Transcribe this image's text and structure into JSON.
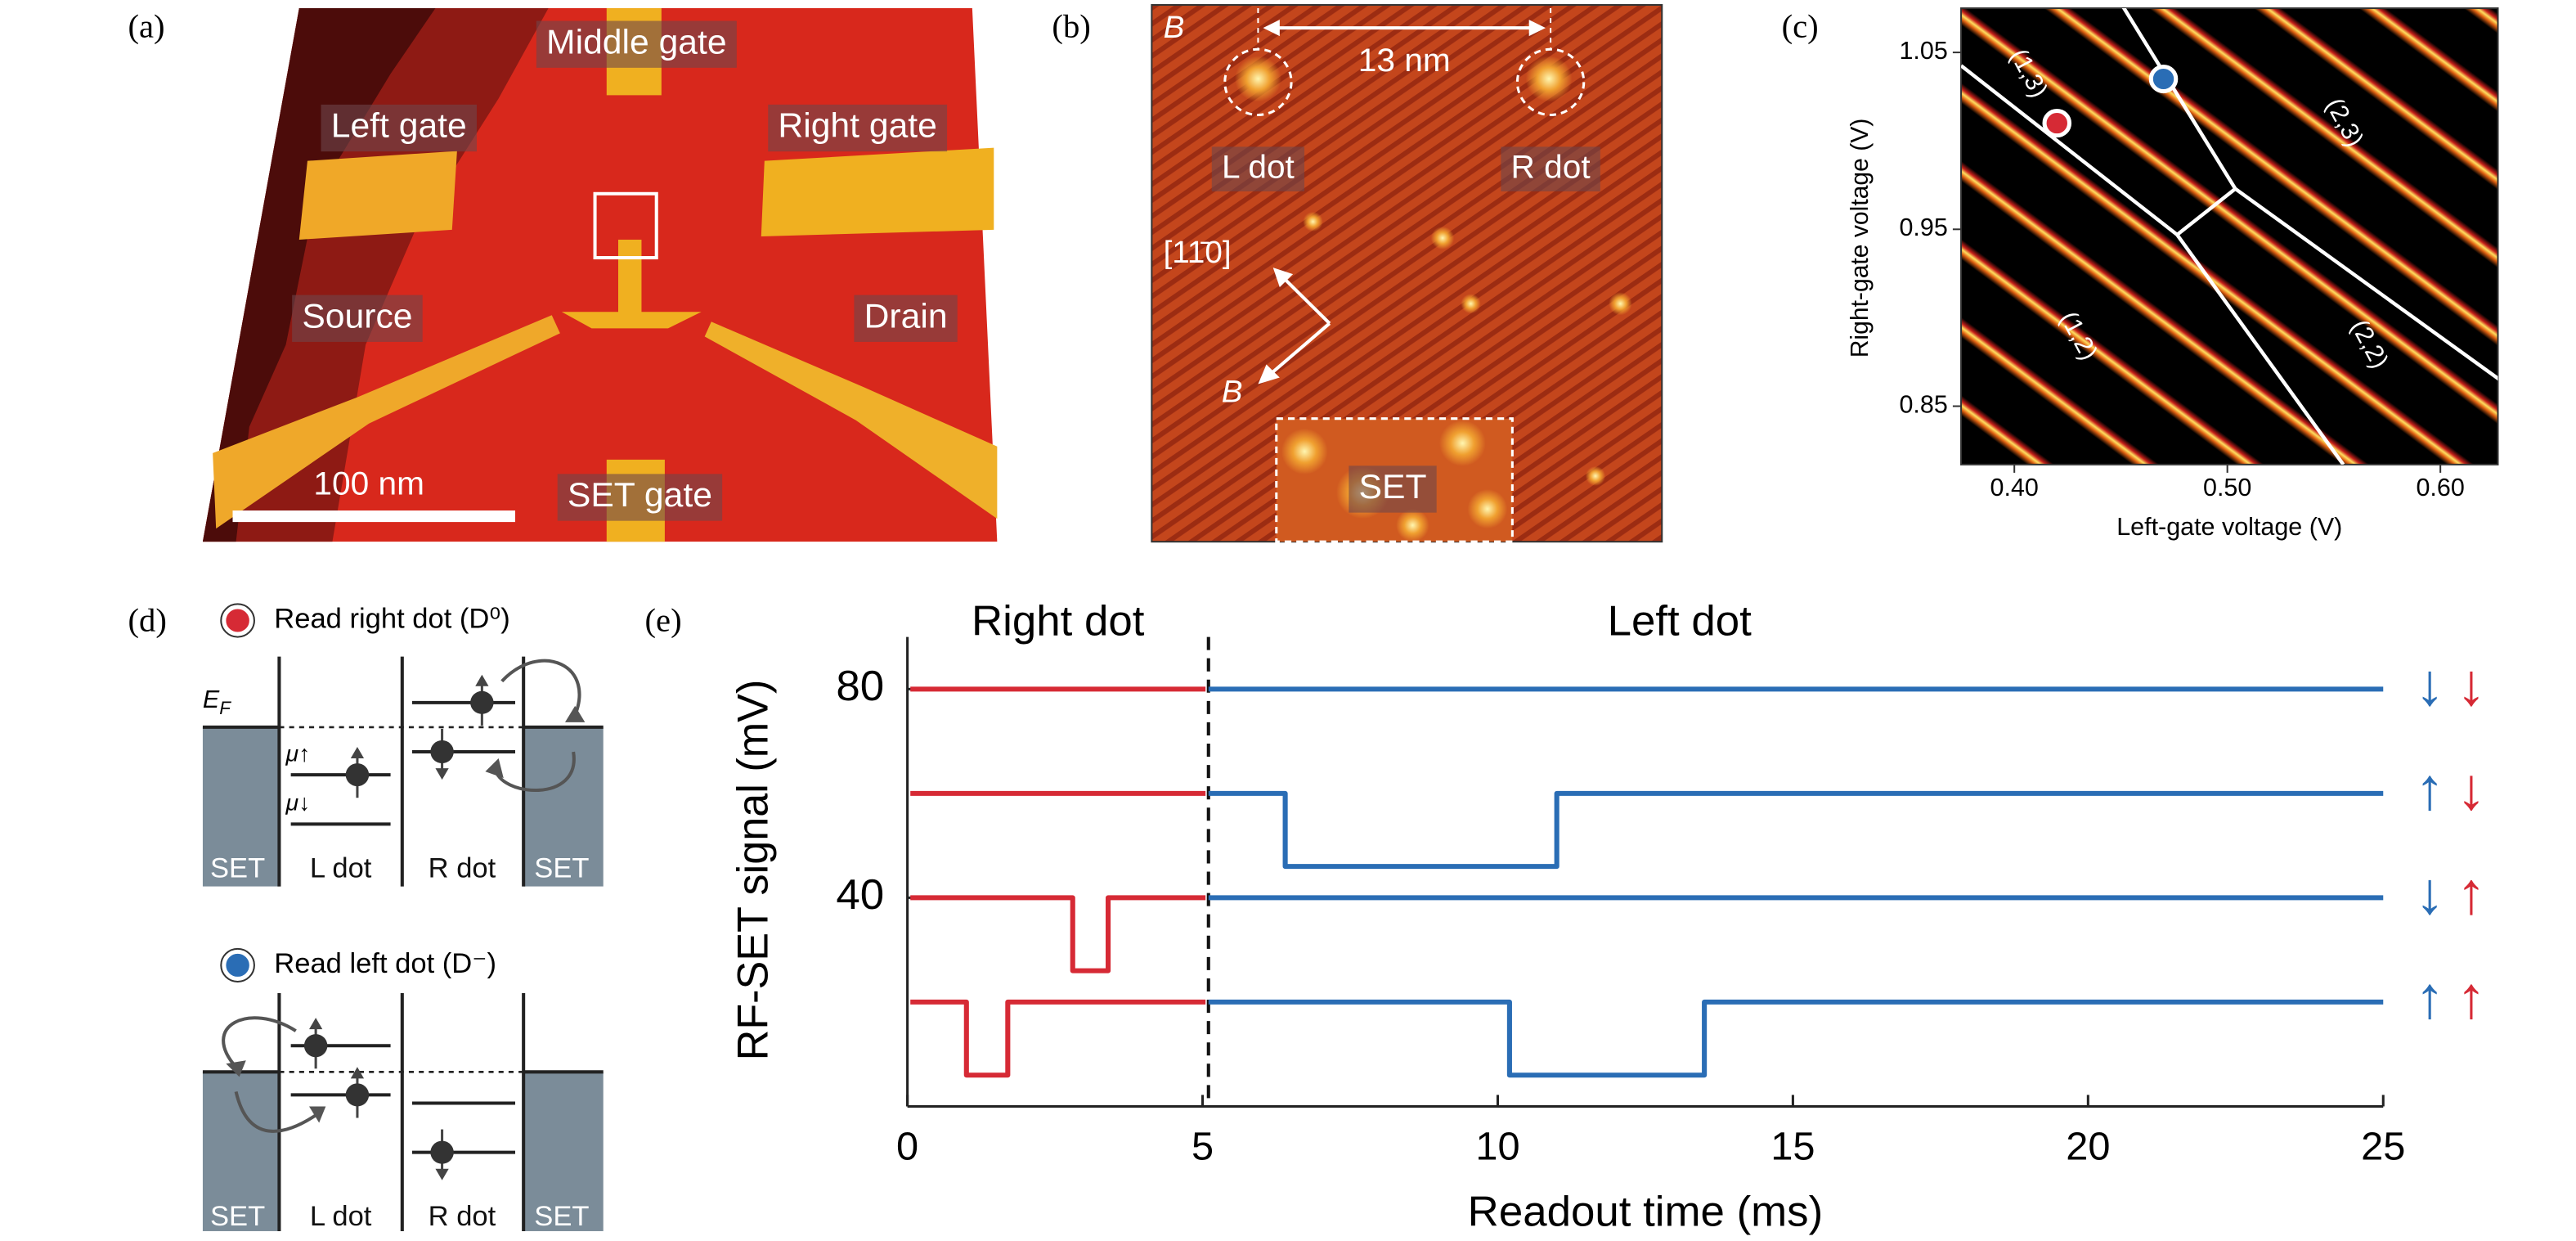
{
  "panel_labels": [
    "(a)",
    "(b)",
    "(c)",
    "(d)",
    "(e)"
  ],
  "panel_a": {
    "gates": [
      "Middle gate",
      "Left gate",
      "Right gate",
      "Source",
      "Drain",
      "SET gate"
    ],
    "scale_bar": "100 nm"
  },
  "panel_b": {
    "corner": "B",
    "spacing": "13 nm",
    "dots": [
      "L dot",
      "R dot"
    ],
    "direction": "[11̄0]",
    "field": "B",
    "set": "SET"
  },
  "panel_c": {
    "xlabel": "Left-gate voltage (V)",
    "ylabel": "Right-gate voltage (V)",
    "xlim": [
      0.375,
      0.627
    ],
    "ylim": [
      0.817,
      1.075
    ],
    "xticks": [
      {
        "value": 0.4,
        "label": "0.40"
      },
      {
        "value": 0.5,
        "label": "0.50"
      },
      {
        "value": 0.6,
        "label": "0.60"
      }
    ],
    "yticks": [
      0.85,
      0.95,
      1.05
    ],
    "regions": [
      "(1,3)",
      "(2,3)",
      "(1,2)",
      "(2,2)"
    ],
    "points": [
      {
        "color": "#d62a35",
        "x": 0.42,
        "y": 1.01
      },
      {
        "color": "#2a6db5",
        "x": 0.47,
        "y": 1.035
      }
    ]
  },
  "panel_d": {
    "read": [
      {
        "text": "Read right dot (D⁰)",
        "color": "#d62a35"
      },
      {
        "text": "Read left dot (D⁻)",
        "color": "#2a6db5"
      }
    ],
    "fermi": {
      "main": "E",
      "sub": "F"
    },
    "mu": [
      "μ↑",
      "μ↓"
    ],
    "regions": [
      "SET",
      "L dot",
      "R dot",
      "SET"
    ]
  },
  "chart_data": {
    "type": "line",
    "ylabel": "RF-SET signal (mV)",
    "xlabel": "Readout time (ms)",
    "headings": [
      "Right dot",
      "Left dot"
    ],
    "divider": 5.1,
    "xlim": [
      0,
      25
    ],
    "xticks": [
      0,
      5,
      10,
      15,
      20,
      25
    ],
    "ylim": [
      0,
      90
    ],
    "yticks": [
      40,
      80
    ],
    "series": [
      {
        "color": "#d62a35",
        "x": [
          0.05,
          5.05
        ],
        "values": [
          80,
          80
        ]
      },
      {
        "color": "#2a6db5",
        "x": [
          5.1,
          25
        ],
        "values": [
          80,
          80
        ]
      },
      {
        "color": "#d62a35",
        "x": [
          0.05,
          5.05
        ],
        "values": [
          60,
          60
        ]
      },
      {
        "color": "#2a6db5",
        "x": [
          5.1,
          6.4,
          6.4,
          11,
          11,
          25
        ],
        "values": [
          60,
          60,
          46,
          46,
          60,
          60
        ]
      },
      {
        "color": "#d62a35",
        "x": [
          0.05,
          2.8,
          2.8,
          3.4,
          3.4,
          5.05
        ],
        "values": [
          40,
          40,
          26,
          26,
          40,
          40
        ]
      },
      {
        "color": "#2a6db5",
        "x": [
          5.1,
          25
        ],
        "values": [
          40,
          40
        ]
      },
      {
        "color": "#d62a35",
        "x": [
          0.05,
          1,
          1,
          1.7,
          1.7,
          5.05
        ],
        "values": [
          20,
          20,
          6,
          6,
          20,
          20
        ]
      },
      {
        "color": "#2a6db5",
        "x": [
          5.1,
          10.2,
          10.2,
          13.5,
          13.5,
          25
        ],
        "values": [
          20,
          20,
          6,
          6,
          20,
          20
        ]
      }
    ],
    "spins": [
      [
        "↓",
        "↓"
      ],
      [
        "↑",
        "↓"
      ],
      [
        "↓",
        "↑"
      ],
      [
        "↑",
        "↑"
      ]
    ],
    "spin_colors": [
      "#2a6db5",
      "#d62a35"
    ]
  }
}
